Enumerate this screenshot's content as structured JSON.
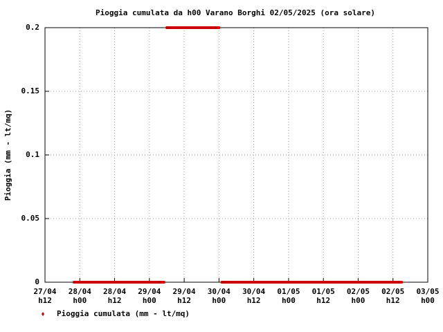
{
  "chart_data": {
    "type": "line",
    "title": "Pioggia cumulata da h00 Varano Borghi 02/05/2025 (ora solare)",
    "y_label": "Pioggia (mm - lt/mq)",
    "series": [
      {
        "name": "Pioggia cumulata (mm - lt/mq)",
        "color": "#cc0000",
        "x": [
          10,
          41,
          null,
          42,
          60,
          null,
          61,
          123
        ],
        "values": [
          0,
          0,
          null,
          0.2,
          0.2,
          null,
          0,
          0
        ]
      }
    ],
    "xlim": [
      0,
      132
    ],
    "xticks": [
      {
        "value": 0,
        "label": "27/04 h12"
      },
      {
        "value": 12,
        "label": "28/04 h00"
      },
      {
        "value": 24,
        "label": "28/04 h12"
      },
      {
        "value": 36,
        "label": "29/04 h00"
      },
      {
        "value": 48,
        "label": "29/04 h12"
      },
      {
        "value": 60,
        "label": "30/04 h00"
      },
      {
        "value": 72,
        "label": "30/04 h12"
      },
      {
        "value": 84,
        "label": "01/05 h00"
      },
      {
        "value": 96,
        "label": "01/05 h12"
      },
      {
        "value": 108,
        "label": "02/05 h00"
      },
      {
        "value": 120,
        "label": "02/05 h12"
      },
      {
        "value": 132,
        "label": "03/05 h00"
      }
    ],
    "ylim": [
      0,
      0.2
    ],
    "yticks": [
      0,
      0.05,
      0.1,
      0.15,
      0.2
    ],
    "grid": true,
    "legend": "bottom-left"
  }
}
